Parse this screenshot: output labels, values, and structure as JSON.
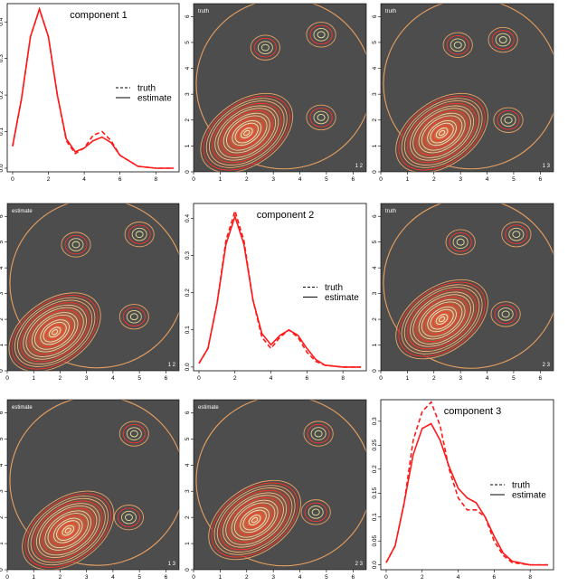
{
  "chart_data": [
    {
      "type": "line",
      "panel": "1,1",
      "title": "component 1",
      "x_ticks": [
        0,
        2,
        4,
        6,
        8
      ],
      "y_ticks": [
        0.0,
        0.1,
        0.2,
        0.3,
        0.4
      ],
      "xlim": [
        -0.3,
        9.3
      ],
      "ylim": [
        -0.01,
        0.45
      ],
      "legend": {
        "entries": [
          "truth",
          "estimate"
        ],
        "position": "right"
      },
      "series": [
        {
          "name": "truth",
          "style": "dashed",
          "x": [
            0,
            0.5,
            1,
            1.5,
            2,
            2.5,
            3,
            3.5,
            4,
            4.5,
            5,
            5.5,
            6,
            7,
            8,
            9
          ],
          "values": [
            0.06,
            0.19,
            0.36,
            0.435,
            0.36,
            0.2,
            0.075,
            0.04,
            0.055,
            0.09,
            0.1,
            0.075,
            0.035,
            0.005,
            0.0,
            0.0
          ]
        },
        {
          "name": "estimate",
          "style": "solid",
          "x": [
            0,
            0.5,
            1,
            1.5,
            2,
            2.5,
            3,
            3.5,
            4,
            4.5,
            5,
            5.5,
            6,
            7,
            8,
            9
          ],
          "values": [
            0.06,
            0.19,
            0.36,
            0.435,
            0.36,
            0.2,
            0.08,
            0.045,
            0.055,
            0.075,
            0.085,
            0.07,
            0.035,
            0.005,
            0.0,
            0.0
          ]
        }
      ]
    },
    {
      "type": "heatmap",
      "panel": "1,2",
      "label_top": "truth",
      "label_corner": "1 2",
      "x_ticks": [
        0,
        1,
        2,
        3,
        4,
        5,
        6
      ],
      "y_ticks": [
        0,
        1,
        2,
        3,
        4,
        5,
        6
      ],
      "xlim": [
        0,
        6.5
      ],
      "ylim": [
        0,
        6.5
      ],
      "peaks": [
        {
          "x": 2.0,
          "y": 1.5,
          "w": 1.0
        },
        {
          "x": 4.8,
          "y": 2.1,
          "w": 0.22
        },
        {
          "x": 2.7,
          "y": 4.8,
          "w": 0.22
        },
        {
          "x": 4.8,
          "y": 5.3,
          "w": 0.22
        }
      ]
    },
    {
      "type": "heatmap",
      "panel": "1,3",
      "label_top": "truth",
      "label_corner": "1 3",
      "x_ticks": [
        0,
        1,
        2,
        3,
        4,
        5,
        6
      ],
      "y_ticks": [
        0,
        1,
        2,
        3,
        4,
        5,
        6
      ],
      "xlim": [
        0,
        6.5
      ],
      "ylim": [
        0,
        6.5
      ],
      "peaks": [
        {
          "x": 2.3,
          "y": 1.5,
          "w": 1.0
        },
        {
          "x": 4.8,
          "y": 2.0,
          "w": 0.3
        },
        {
          "x": 2.9,
          "y": 4.9,
          "w": 0.22
        },
        {
          "x": 4.6,
          "y": 5.1,
          "w": 0.22
        }
      ]
    },
    {
      "type": "heatmap",
      "panel": "2,1",
      "label_top": "estimate",
      "label_corner": "1 2",
      "x_ticks": [
        0,
        1,
        2,
        3,
        4,
        5,
        6
      ],
      "y_ticks": [
        0,
        1,
        2,
        3,
        4,
        5,
        6
      ],
      "xlim": [
        0,
        6.5
      ],
      "ylim": [
        0,
        6.5
      ],
      "peaks": [
        {
          "x": 1.8,
          "y": 1.5,
          "w": 1.0
        },
        {
          "x": 4.8,
          "y": 2.1,
          "w": 0.22
        },
        {
          "x": 2.6,
          "y": 4.9,
          "w": 0.22
        },
        {
          "x": 5.0,
          "y": 5.3,
          "w": 0.2
        }
      ]
    },
    {
      "type": "line",
      "panel": "2,2",
      "title": "component 2",
      "x_ticks": [
        0,
        2,
        4,
        6,
        8
      ],
      "y_ticks": [
        0.0,
        0.1,
        0.2,
        0.3,
        0.4
      ],
      "xlim": [
        -0.3,
        9.3
      ],
      "ylim": [
        -0.01,
        0.44
      ],
      "legend": {
        "entries": [
          "truth",
          "estimate"
        ],
        "position": "right"
      },
      "series": [
        {
          "name": "truth",
          "style": "dashed",
          "x": [
            0,
            0.5,
            1,
            1.5,
            2,
            2.5,
            3,
            3.5,
            4,
            4.5,
            5,
            5.5,
            6,
            6.5,
            7,
            8,
            9
          ],
          "values": [
            0.01,
            0.05,
            0.17,
            0.34,
            0.42,
            0.34,
            0.18,
            0.08,
            0.05,
            0.08,
            0.1,
            0.08,
            0.04,
            0.015,
            0.005,
            0.0,
            0.0
          ]
        },
        {
          "name": "estimate",
          "style": "solid",
          "x": [
            0,
            0.5,
            1,
            1.5,
            2,
            2.5,
            3,
            3.5,
            4,
            4.5,
            5,
            5.5,
            6,
            6.5,
            7,
            8,
            9
          ],
          "values": [
            0.01,
            0.05,
            0.17,
            0.33,
            0.405,
            0.33,
            0.18,
            0.09,
            0.06,
            0.085,
            0.1,
            0.085,
            0.05,
            0.02,
            0.005,
            0.0,
            0.0
          ]
        }
      ]
    },
    {
      "type": "heatmap",
      "panel": "2,3",
      "label_top": "truth",
      "label_corner": "2 3",
      "x_ticks": [
        0,
        1,
        2,
        3,
        4,
        5,
        6
      ],
      "y_ticks": [
        0,
        1,
        2,
        3,
        4,
        5,
        6
      ],
      "xlim": [
        0,
        6.5
      ],
      "ylim": [
        0,
        6.5
      ],
      "peaks": [
        {
          "x": 2.3,
          "y": 2.0,
          "w": 1.0
        },
        {
          "x": 4.7,
          "y": 2.2,
          "w": 0.25
        },
        {
          "x": 3.0,
          "y": 5.0,
          "w": 0.22
        },
        {
          "x": 5.1,
          "y": 5.3,
          "w": 0.2
        }
      ]
    },
    {
      "type": "heatmap",
      "panel": "3,1",
      "label_top": "estimate",
      "label_corner": "1 3",
      "x_ticks": [
        0,
        1,
        2,
        3,
        4,
        5,
        6
      ],
      "y_ticks": [
        0,
        1,
        2,
        3,
        4,
        5,
        6
      ],
      "xlim": [
        0,
        6.5
      ],
      "ylim": [
        0,
        6.5
      ],
      "peaks": [
        {
          "x": 2.3,
          "y": 1.5,
          "w": 1.0
        },
        {
          "x": 4.6,
          "y": 2.0,
          "w": 0.3
        },
        {
          "x": 4.8,
          "y": 5.2,
          "w": 0.2
        }
      ]
    },
    {
      "type": "heatmap",
      "panel": "3,2",
      "label_top": "estimate",
      "label_corner": "2 3",
      "x_ticks": [
        0,
        1,
        2,
        3,
        4,
        5,
        6
      ],
      "y_ticks": [
        0,
        1,
        2,
        3,
        4,
        5,
        6
      ],
      "xlim": [
        0,
        6.5
      ],
      "ylim": [
        0,
        6.5
      ],
      "peaks": [
        {
          "x": 2.3,
          "y": 1.9,
          "w": 1.0
        },
        {
          "x": 4.6,
          "y": 2.2,
          "w": 0.25
        },
        {
          "x": 4.7,
          "y": 5.2,
          "w": 0.22
        }
      ]
    },
    {
      "type": "line",
      "panel": "3,3",
      "title": "component 3",
      "x_ticks": [
        0,
        2,
        4,
        6,
        8
      ],
      "y_ticks": [
        0.0,
        0.05,
        0.1,
        0.15,
        0.2,
        0.25,
        0.3
      ],
      "xlim": [
        -0.3,
        9.3
      ],
      "ylim": [
        -0.01,
        0.345
      ],
      "legend": {
        "entries": [
          "truth",
          "estimate"
        ],
        "position": "right"
      },
      "series": [
        {
          "name": "truth",
          "style": "dashed",
          "x": [
            0,
            0.5,
            1,
            1.5,
            2,
            2.5,
            3,
            3.5,
            4,
            4.5,
            5,
            5.5,
            6,
            6.5,
            7,
            8,
            9
          ],
          "values": [
            0.005,
            0.04,
            0.13,
            0.26,
            0.32,
            0.34,
            0.29,
            0.2,
            0.14,
            0.115,
            0.115,
            0.1,
            0.05,
            0.02,
            0.005,
            0.0,
            0.0
          ]
        },
        {
          "name": "estimate",
          "style": "solid",
          "x": [
            0,
            0.5,
            1,
            1.5,
            2,
            2.5,
            3,
            3.5,
            4,
            4.5,
            5,
            5.5,
            6,
            6.5,
            7,
            8,
            9
          ],
          "values": [
            0.005,
            0.04,
            0.13,
            0.23,
            0.285,
            0.295,
            0.26,
            0.205,
            0.16,
            0.14,
            0.13,
            0.1,
            0.06,
            0.025,
            0.008,
            0.0,
            0.0
          ]
        }
      ]
    }
  ],
  "colors": {
    "line": "#ff1a1a",
    "background": "#4d4d4d",
    "contour_outer": "#e8a060",
    "contour_inner": "#ff7f3f"
  }
}
